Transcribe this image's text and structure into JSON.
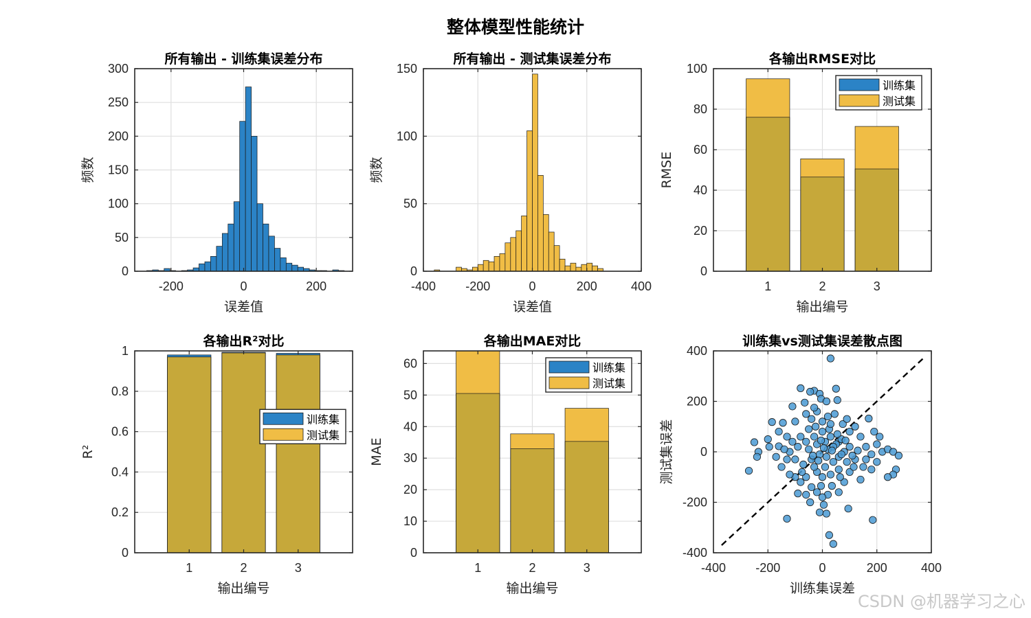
{
  "figure": {
    "title": "整体模型性能统计",
    "watermark": "CSDN @机器学习之心"
  },
  "colors": {
    "train": "#2b83c6",
    "test": "#f0bd45",
    "overlap": "#c6a83a",
    "scatter": "#4a9ad4"
  },
  "chart_data": [
    {
      "type": "bar",
      "title": "所有输出 - 训练集误差分布",
      "xlabel": "误差值",
      "ylabel": "频数",
      "xlim": [
        -300,
        300
      ],
      "ylim": [
        0,
        300
      ],
      "xticks": [
        -200,
        0,
        200
      ],
      "yticks": [
        0,
        50,
        100,
        150,
        200,
        250,
        300
      ],
      "bin_width": 16,
      "bin_centers": [
        -259,
        -243,
        -227,
        -211,
        -195,
        -179,
        -163,
        -147,
        -131,
        -115,
        -99,
        -83,
        -67,
        -51,
        -35,
        -19,
        -3,
        13,
        29,
        45,
        61,
        77,
        93,
        109,
        125,
        141,
        157,
        173,
        189,
        205,
        221,
        237,
        253,
        269
      ],
      "values": [
        1,
        2,
        1,
        4,
        1,
        0,
        1,
        2,
        5,
        11,
        14,
        22,
        37,
        56,
        70,
        103,
        222,
        273,
        200,
        100,
        70,
        52,
        34,
        20,
        12,
        9,
        6,
        4,
        2,
        1,
        1,
        0,
        2,
        1
      ],
      "color": "train",
      "grid": true
    },
    {
      "type": "bar",
      "title": "所有输出 - 测试集误差分布",
      "xlabel": "误差值",
      "ylabel": "频数",
      "xlim": [
        -400,
        400
      ],
      "ylim": [
        0,
        150
      ],
      "xticks": [
        -400,
        -200,
        0,
        200,
        400
      ],
      "yticks": [
        0,
        50,
        100,
        150
      ],
      "bin_width": 20,
      "bin_centers": [
        -370,
        -350,
        -330,
        -310,
        -290,
        -270,
        -250,
        -230,
        -210,
        -190,
        -170,
        -150,
        -130,
        -110,
        -90,
        -70,
        -50,
        -30,
        -10,
        10,
        30,
        50,
        70,
        90,
        110,
        130,
        150,
        170,
        190,
        210,
        230,
        250,
        270,
        290,
        310,
        330,
        350,
        370
      ],
      "values": [
        0,
        1,
        0,
        0,
        0,
        3,
        2,
        1,
        3,
        5,
        8,
        7,
        11,
        13,
        21,
        25,
        30,
        41,
        104,
        146,
        71,
        42,
        29,
        19,
        9,
        4,
        6,
        3,
        5,
        6,
        4,
        2,
        0,
        0,
        0,
        0,
        0,
        0
      ],
      "color": "test",
      "grid": true
    },
    {
      "type": "bar",
      "title": "各输出RMSE对比",
      "xlabel": "输出编号",
      "ylabel": "RMSE",
      "categories": [
        "1",
        "2",
        "3"
      ],
      "xlim": [
        0,
        4
      ],
      "ylim": [
        0,
        100
      ],
      "yticks": [
        0,
        20,
        40,
        60,
        80,
        100
      ],
      "series": [
        {
          "name": "训练集",
          "values": [
            76,
            46.5,
            50.5
          ]
        },
        {
          "name": "测试集",
          "values": [
            95,
            55.5,
            71.5
          ]
        }
      ],
      "legend": "top-right",
      "grid": true
    },
    {
      "type": "bar",
      "title": "各输出R²对比",
      "xlabel": "输出编号",
      "ylabel": "R²",
      "categories": [
        "1",
        "2",
        "3"
      ],
      "xlim": [
        0,
        4
      ],
      "ylim": [
        0,
        1
      ],
      "yticks": [
        0,
        0.2,
        0.4,
        0.6,
        0.8,
        1
      ],
      "series": [
        {
          "name": "训练集",
          "values": [
            0.98,
            0.993,
            0.988
          ]
        },
        {
          "name": "测试集",
          "values": [
            0.97,
            0.99,
            0.98
          ]
        }
      ],
      "legend": "right",
      "grid": true
    },
    {
      "type": "bar",
      "title": "各输出MAE对比",
      "xlabel": "输出编号",
      "ylabel": "MAE",
      "categories": [
        "1",
        "2",
        "3"
      ],
      "xlim": [
        0,
        4
      ],
      "ylim": [
        0,
        64
      ],
      "yticks": [
        0,
        10,
        20,
        30,
        40,
        50,
        60
      ],
      "series": [
        {
          "name": "训练集",
          "values": [
            50.5,
            33,
            35.3
          ]
        },
        {
          "name": "测试集",
          "values": [
            64,
            37.7,
            45.8
          ]
        }
      ],
      "legend": "top-right",
      "grid": true
    },
    {
      "type": "scatter",
      "title": "训练集vs测试集误差散点图",
      "xlabel": "训练集误差",
      "ylabel": "测试集误差",
      "xlim": [
        -400,
        400
      ],
      "ylim": [
        -400,
        400
      ],
      "xticks": [
        -400,
        -200,
        0,
        200,
        400
      ],
      "yticks": [
        -400,
        -200,
        0,
        200,
        400
      ],
      "reference_line": {
        "x": [
          -370,
          370
        ],
        "y": [
          -370,
          370
        ],
        "style": "dashed"
      },
      "points": [
        [
          30,
          370
        ],
        [
          -80,
          252
        ],
        [
          -30,
          242
        ],
        [
          -10,
          230
        ],
        [
          -45,
          238
        ],
        [
          50,
          250
        ],
        [
          -5,
          210
        ],
        [
          15,
          200
        ],
        [
          55,
          205
        ],
        [
          -110,
          180
        ],
        [
          -145,
          115
        ],
        [
          -185,
          118
        ],
        [
          -250,
          38
        ],
        [
          -235,
          0
        ],
        [
          -270,
          -75
        ],
        [
          -240,
          -20
        ],
        [
          -160,
          22
        ],
        [
          -195,
          20
        ],
        [
          -130,
          60
        ],
        [
          -60,
          150
        ],
        [
          -40,
          130
        ],
        [
          -20,
          160
        ],
        [
          0,
          120
        ],
        [
          20,
          140
        ],
        [
          45,
          150
        ],
        [
          75,
          110
        ],
        [
          120,
          100
        ],
        [
          170,
          132
        ],
        [
          190,
          80
        ],
        [
          140,
          60
        ],
        [
          100,
          80
        ],
        [
          160,
          20
        ],
        [
          180,
          -10
        ],
        [
          200,
          30
        ],
        [
          220,
          0
        ],
        [
          240,
          10
        ],
        [
          260,
          0
        ],
        [
          280,
          -15
        ],
        [
          270,
          -70
        ],
        [
          260,
          -90
        ],
        [
          240,
          -100
        ],
        [
          180,
          -70
        ],
        [
          150,
          -60
        ],
        [
          200,
          -40
        ],
        [
          120,
          -30
        ],
        [
          100,
          -80
        ],
        [
          80,
          -120
        ],
        [
          60,
          -160
        ],
        [
          20,
          -170
        ],
        [
          0,
          -180
        ],
        [
          -20,
          -160
        ],
        [
          -40,
          -140
        ],
        [
          -60,
          -170
        ],
        [
          -80,
          -120
        ],
        [
          -100,
          -100
        ],
        [
          -120,
          -90
        ],
        [
          -150,
          -60
        ],
        [
          -130,
          -265
        ],
        [
          -10,
          -240
        ],
        [
          15,
          -245
        ],
        [
          25,
          -330
        ],
        [
          40,
          -365
        ],
        [
          95,
          -225
        ],
        [
          185,
          -270
        ],
        [
          -90,
          -165
        ],
        [
          -60,
          -100
        ],
        [
          -20,
          -80
        ],
        [
          10,
          -60
        ],
        [
          40,
          -40
        ],
        [
          60,
          -20
        ],
        [
          80,
          0
        ],
        [
          100,
          20
        ],
        [
          60,
          40
        ],
        [
          30,
          60
        ],
        [
          0,
          80
        ],
        [
          -30,
          60
        ],
        [
          -60,
          40
        ],
        [
          -90,
          20
        ],
        [
          -120,
          0
        ],
        [
          -100,
          -30
        ],
        [
          -70,
          -50
        ],
        [
          -40,
          -30
        ],
        [
          -10,
          -10
        ],
        [
          20,
          10
        ],
        [
          50,
          30
        ],
        [
          70,
          50
        ],
        [
          -50,
          10
        ],
        [
          -20,
          30
        ],
        [
          10,
          40
        ],
        [
          40,
          20
        ],
        [
          70,
          -10
        ],
        [
          90,
          -40
        ],
        [
          -80,
          60
        ],
        [
          -110,
          40
        ],
        [
          -140,
          10
        ],
        [
          -30,
          -60
        ],
        [
          0,
          -100
        ],
        [
          30,
          -90
        ],
        [
          60,
          -70
        ],
        [
          -50,
          90
        ],
        [
          -25,
          100
        ],
        [
          25,
          90
        ],
        [
          55,
          70
        ],
        [
          85,
          45
        ],
        [
          -5,
          45
        ],
        [
          15,
          -20
        ],
        [
          -35,
          -15
        ],
        [
          35,
          5
        ],
        [
          5,
          15
        ],
        [
          -15,
          -35
        ],
        [
          110,
          -15
        ],
        [
          130,
          5
        ],
        [
          -170,
          -20
        ],
        [
          -200,
          50
        ],
        [
          90,
          130
        ],
        [
          -65,
          195
        ],
        [
          -5,
          -135
        ],
        [
          35,
          -135
        ],
        [
          65,
          -100
        ],
        [
          115,
          -60
        ],
        [
          140,
          -110
        ],
        [
          -100,
          120
        ],
        [
          -75,
          -80
        ],
        [
          -45,
          -200
        ],
        [
          5,
          -210
        ],
        [
          -30,
          175
        ],
        [
          30,
          110
        ],
        [
          -130,
          -30
        ],
        [
          160,
          -30
        ],
        [
          210,
          60
        ],
        [
          -160,
          80
        ]
      ],
      "grid": true
    }
  ]
}
